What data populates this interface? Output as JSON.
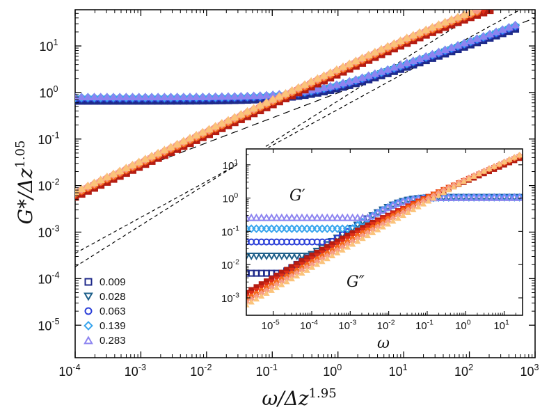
{
  "chart_data": [
    {
      "type": "scatter",
      "title": "",
      "xlabel": "ω/Δz^1.95",
      "ylabel": "G*/Δz^1.05",
      "xscale": "log",
      "yscale": "log",
      "xlim": [
        0.0001,
        1000
      ],
      "ylim": [
        2e-06,
        60
      ],
      "x_tick_labels": [
        "10⁻⁴",
        "10⁻³",
        "10⁻²",
        "10⁻¹",
        "10⁰",
        "10¹",
        "10²",
        "10³"
      ],
      "y_tick_labels": [
        "10⁻⁵",
        "10⁻⁴",
        "10⁻³",
        "10⁻²",
        "10⁻¹",
        "10⁰",
        "10¹"
      ],
      "legend_position": "bottom-left",
      "legend": [
        {
          "label": "0.009",
          "marker": "square",
          "color": "#1f2a8a"
        },
        {
          "label": "0.028",
          "marker": "triangle-down",
          "color": "#1d5f8a"
        },
        {
          "label": "0.063",
          "marker": "circle",
          "color": "#2a3ed8"
        },
        {
          "label": "0.139",
          "marker": "diamond",
          "color": "#3aa6ee"
        },
        {
          "label": "0.283",
          "marker": "triangle-up",
          "color": "#8d84f0"
        }
      ],
      "series": [
        {
          "name": "G' 0.009",
          "marker": "square",
          "color": "#1f2a8a",
          "plateau": 0.66,
          "crossover": 25,
          "high_exponent": 0.5
        },
        {
          "name": "G' 0.028",
          "marker": "triangle-down",
          "color": "#1d5f8a",
          "plateau": 0.7,
          "crossover": 25,
          "high_exponent": 0.5
        },
        {
          "name": "G' 0.063",
          "marker": "circle",
          "color": "#2a3ed8",
          "plateau": 0.74,
          "crossover": 25,
          "high_exponent": 0.5
        },
        {
          "name": "G' 0.139",
          "marker": "diamond",
          "color": "#3aa6ee",
          "plateau": 0.78,
          "crossover": 25,
          "high_exponent": 0.5
        },
        {
          "name": "G' 0.283",
          "marker": "triangle-up",
          "color": "#8d84f0",
          "plateau": 0.82,
          "crossover": 25,
          "high_exponent": 0.5
        },
        {
          "name": "G'' 0.009",
          "marker": "square",
          "color": "#b51d12",
          "prefactor": 2.5,
          "low_exponent": 0.66,
          "crossover": 25,
          "high_exponent": 0.5
        },
        {
          "name": "G'' 0.028",
          "marker": "triangle-down",
          "color": "#e02e17",
          "prefactor": 2.7,
          "low_exponent": 0.66,
          "crossover": 25,
          "high_exponent": 0.5
        },
        {
          "name": "G'' 0.063",
          "marker": "circle",
          "color": "#f56a1c",
          "prefactor": 2.9,
          "low_exponent": 0.66,
          "crossover": 25,
          "high_exponent": 0.5
        },
        {
          "name": "G'' 0.139",
          "marker": "diamond",
          "color": "#f59a86",
          "prefactor": 3.1,
          "low_exponent": 0.66,
          "crossover": 25,
          "high_exponent": 0.5
        },
        {
          "name": "G'' 0.283",
          "marker": "triangle-up",
          "color": "#fbc37a",
          "prefactor": 3.3,
          "low_exponent": 0.66,
          "crossover": 25,
          "high_exponent": 0.5
        }
      ],
      "guide_lines": [
        {
          "style": "long-dash",
          "through": [
            [
              0.0001,
              0.007
            ],
            [
              1000,
              40
            ]
          ]
        },
        {
          "style": "short-dash",
          "through": [
            [
              0.0001,
              0.00018
            ],
            [
              100,
              40
            ]
          ]
        },
        {
          "style": "short-dash",
          "through": [
            [
              0.0001,
              0.00035
            ],
            [
              1000,
              90
            ]
          ]
        }
      ]
    },
    {
      "type": "scatter",
      "title": "",
      "xlabel": "ω",
      "ylabel": "",
      "xscale": "log",
      "yscale": "log",
      "xlim": [
        2e-06,
        30
      ],
      "ylim": [
        0.0003,
        30
      ],
      "x_tick_labels": [
        "10⁻⁵",
        "10⁻⁴",
        "10⁻³",
        "10⁻²",
        "10⁻¹",
        "10⁰",
        "10¹"
      ],
      "y_tick_labels": [
        "10⁻³",
        "10⁻²",
        "10⁻¹",
        "10⁰",
        "10¹"
      ],
      "annotations": [
        "G′",
        "G″"
      ],
      "series": [
        {
          "name": "G' 0.009",
          "marker": "square",
          "color": "#1f2a8a",
          "plateau": 0.0055,
          "crossover": 0.02
        },
        {
          "name": "G' 0.028",
          "marker": "triangle-down",
          "color": "#1d5f8a",
          "plateau": 0.018,
          "crossover": 0.02
        },
        {
          "name": "G' 0.063",
          "marker": "circle",
          "color": "#2a3ed8",
          "plateau": 0.048,
          "crossover": 0.02
        },
        {
          "name": "G' 0.139",
          "marker": "diamond",
          "color": "#3aa6ee",
          "plateau": 0.12,
          "crossover": 0.02
        },
        {
          "name": "G' 0.283",
          "marker": "triangle-up",
          "color": "#8d84f0",
          "plateau": 0.26,
          "crossover": 0.02
        },
        {
          "name": "G'' 0.009",
          "marker": "square",
          "color": "#b51d12",
          "shift": 0.009
        },
        {
          "name": "G'' 0.028",
          "marker": "triangle-down",
          "color": "#e02e17",
          "shift": 0.028
        },
        {
          "name": "G'' 0.063",
          "marker": "circle",
          "color": "#f56a1c",
          "shift": 0.063
        },
        {
          "name": "G'' 0.139",
          "marker": "diamond",
          "color": "#f59a86",
          "shift": 0.139
        },
        {
          "name": "G'' 0.283",
          "marker": "triangle-up",
          "color": "#fbc37a",
          "shift": 0.283
        }
      ]
    }
  ]
}
